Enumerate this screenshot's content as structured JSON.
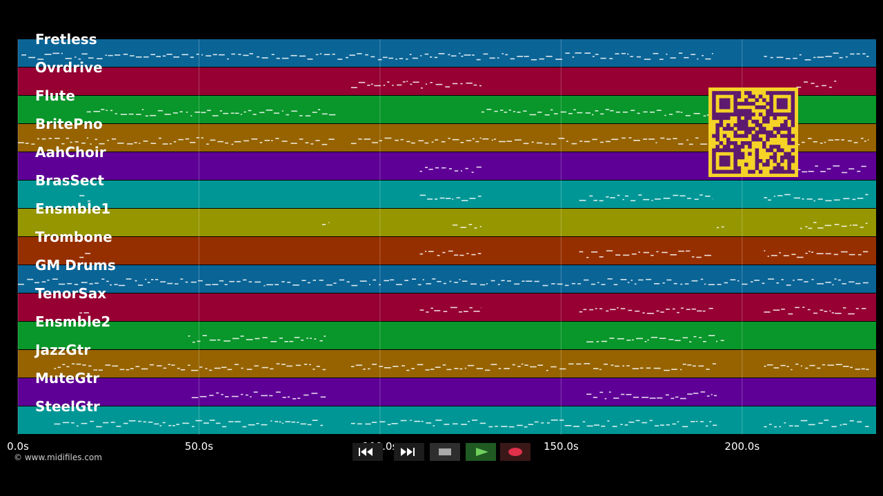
{
  "tracks": [
    {
      "name": "Fretless",
      "color": "#0a6496"
    },
    {
      "name": "Ovrdrive",
      "color": "#960032"
    },
    {
      "name": "Flute",
      "color": "#09962a"
    },
    {
      "name": "BritePno",
      "color": "#966300"
    },
    {
      "name": "AahChoir",
      "color": "#5e0096"
    },
    {
      "name": "BrasSect",
      "color": "#009696"
    },
    {
      "name": "Ensmble1",
      "color": "#969600"
    },
    {
      "name": "Trombone",
      "color": "#962f00"
    },
    {
      "name": "GM Drums",
      "color": "#0a6496"
    },
    {
      "name": "TenorSax",
      "color": "#960032"
    },
    {
      "name": "Ensmble2",
      "color": "#09962a"
    },
    {
      "name": "JazzGtr",
      "color": "#966300"
    },
    {
      "name": "MuteGtr",
      "color": "#5e0096"
    },
    {
      "name": "SteelGtr",
      "color": "#009696"
    }
  ],
  "axis": {
    "unit": "s",
    "range": [
      0,
      237
    ],
    "ticks": [
      {
        "value": 0,
        "label": "0.0s"
      },
      {
        "value": 50,
        "label": "50.0s"
      },
      {
        "value": 100,
        "label": "100.0s"
      },
      {
        "value": 150,
        "label": "150.0s"
      },
      {
        "value": 200,
        "label": "200.0s"
      }
    ]
  },
  "copyright": "© www.midifiles.com",
  "transport": {
    "buttons": [
      {
        "name": "rewind-button",
        "icon": "rewind-icon"
      },
      {
        "name": "fast-forward-button",
        "icon": "fast-forward-icon"
      },
      {
        "name": "stop-button",
        "icon": "stop-icon"
      },
      {
        "name": "play-button",
        "icon": "play-icon"
      },
      {
        "name": "record-button",
        "icon": "record-icon"
      }
    ]
  },
  "qr": {
    "icon": "qr-code-icon",
    "fg": "#5e1a6e",
    "bg": "#f5d327"
  },
  "colors": {
    "background": "#000000",
    "note": "#ffffff"
  }
}
